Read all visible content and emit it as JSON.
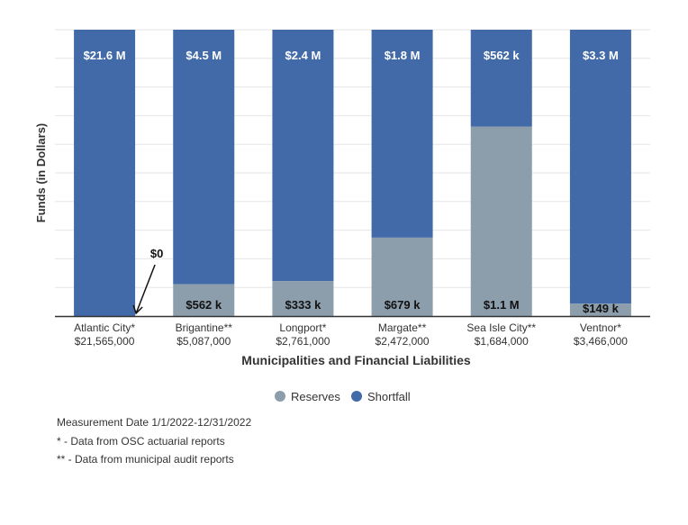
{
  "chart_data": {
    "type": "bar",
    "stacked": true,
    "xlabel": "Municipalities and Financial Liabilities",
    "ylabel": "Funds (in Dollars)",
    "normalized": true,
    "ylim": [
      0,
      1
    ],
    "grid": true,
    "legend_position": "bottom",
    "categories": [
      {
        "name": "Atlantic City*",
        "liability": "$21,565,000"
      },
      {
        "name": "Brigantine**",
        "liability": "$5,087,000"
      },
      {
        "name": "Longport*",
        "liability": "$2,761,000"
      },
      {
        "name": "Margate**",
        "liability": "$2,472,000"
      },
      {
        "name": "Sea Isle City**",
        "liability": "$1,684,000"
      },
      {
        "name": "Ventnor*",
        "liability": "$3,466,000"
      }
    ],
    "series": [
      {
        "name": "Reserves",
        "color": "#8c9dab",
        "values": [
          0,
          562000,
          333000,
          679000,
          1100000,
          149000
        ],
        "labels": [
          "$0",
          "$562 k",
          "$333 k",
          "$679 k",
          "$1.1 M",
          "$149 k"
        ]
      },
      {
        "name": "Shortfall",
        "color": "#426aa8",
        "values": [
          21600000,
          4500000,
          2400000,
          1800000,
          562000,
          3300000
        ],
        "labels": [
          "$21.6 M",
          "$4.5 M",
          "$2.4 M",
          "$1.8 M",
          "$562 k",
          "$3.3 M"
        ]
      }
    ]
  },
  "notes": [
    "Measurement Date 1/1/2022-12/31/2022",
    "* - Data from OSC actuarial reports",
    "** - Data from municipal audit reports"
  ]
}
